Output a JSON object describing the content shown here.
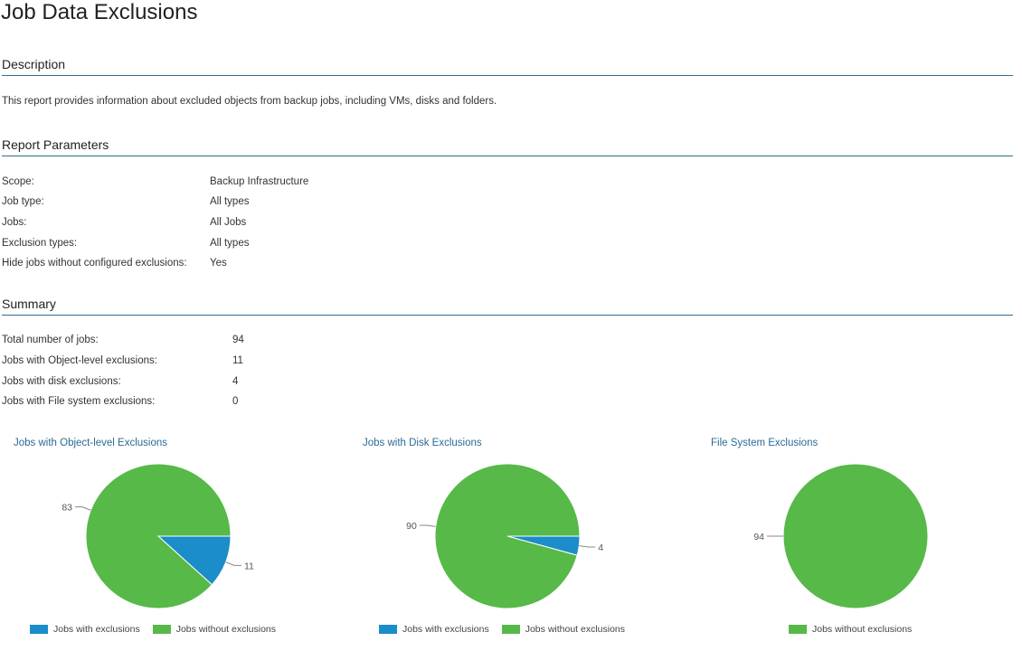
{
  "page_title": "Job Data Exclusions",
  "sections": {
    "description": "Description",
    "parameters": "Report Parameters",
    "summary": "Summary"
  },
  "description_text": "This report provides information about excluded objects from backup jobs, including VMs, disks and folders.",
  "parameters": [
    {
      "label": "Scope:",
      "value": "Backup Infrastructure"
    },
    {
      "label": "Job type:",
      "value": "All types"
    },
    {
      "label": "Jobs:",
      "value": "All Jobs"
    },
    {
      "label": "Exclusion types:",
      "value": "All types"
    },
    {
      "label": "Hide jobs without configured exclusions:",
      "value": "Yes"
    }
  ],
  "summary": [
    {
      "label": "Total number of jobs:",
      "value": "94"
    },
    {
      "label": "Jobs with Object-level exclusions:",
      "value": "11"
    },
    {
      "label": "Jobs with disk exclusions:",
      "value": "4"
    },
    {
      "label": "Jobs with File system exclusions:",
      "value": "0"
    }
  ],
  "colors": {
    "with_exclusions": "#1b8dc9",
    "without_exclusions": "#56b948"
  },
  "chart_data": [
    {
      "type": "pie",
      "title": "Jobs with Object-level Exclusions",
      "slices": [
        {
          "label": "Jobs with exclusions",
          "value": 11,
          "color": "#1b8dc9"
        },
        {
          "label": "Jobs without exclusions",
          "value": 83,
          "color": "#56b948"
        }
      ],
      "legend": [
        "Jobs with exclusions",
        "Jobs without exclusions"
      ],
      "legend_placement": "bottom"
    },
    {
      "type": "pie",
      "title": "Jobs with Disk Exclusions",
      "slices": [
        {
          "label": "Jobs with exclusions",
          "value": 4,
          "color": "#1b8dc9"
        },
        {
          "label": "Jobs without exclusions",
          "value": 90,
          "color": "#56b948"
        }
      ],
      "legend": [
        "Jobs with exclusions",
        "Jobs without exclusions"
      ],
      "legend_placement": "bottom"
    },
    {
      "type": "pie",
      "title": "File System Exclusions",
      "slices": [
        {
          "label": "Jobs without exclusions",
          "value": 94,
          "color": "#56b948"
        }
      ],
      "legend": [
        "Jobs without exclusions"
      ],
      "legend_placement": "bottom"
    }
  ]
}
